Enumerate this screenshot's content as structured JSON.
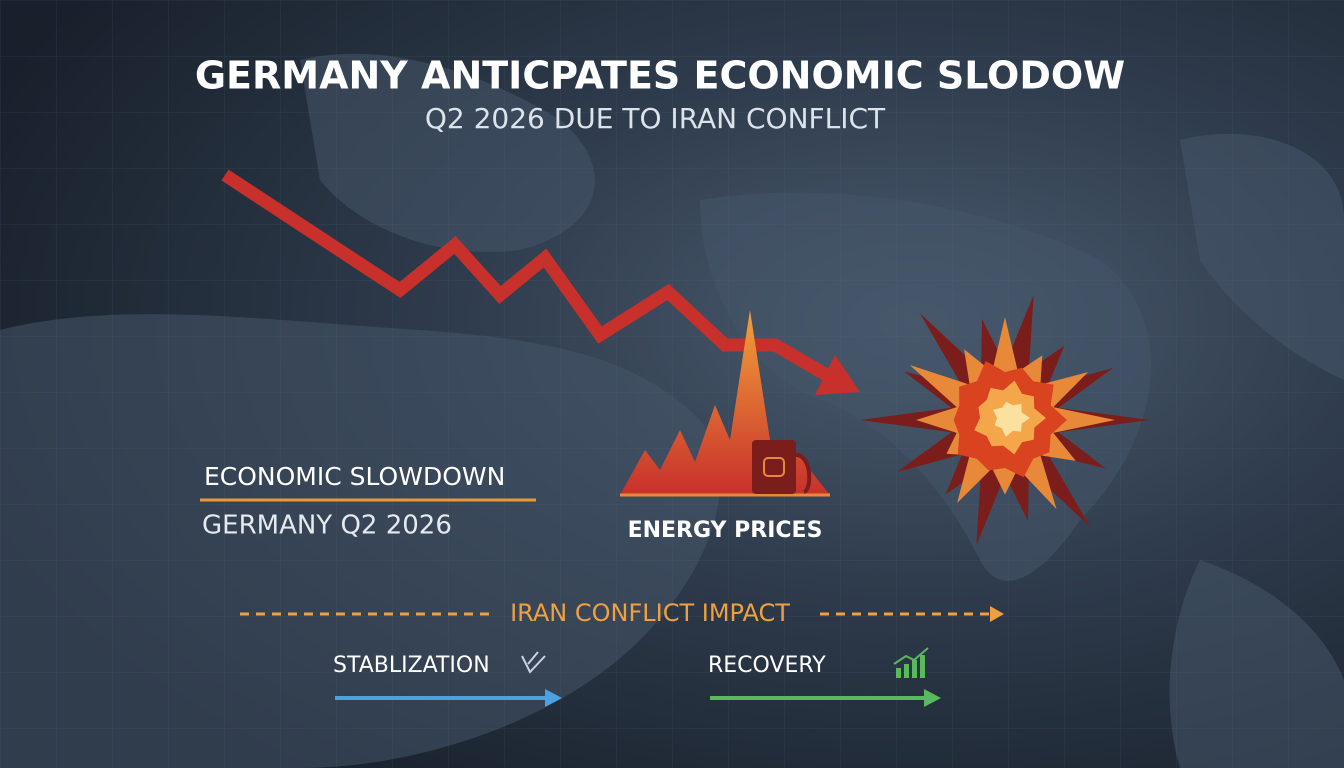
{
  "header": {
    "title": "GERMANY ANTICPATES ECONOMIC SLODOW",
    "subtitle": "Q2 2026 DUE TO IRAN CONFLICT"
  },
  "labels": {
    "slowdown": {
      "title": "ECONOMIC SLOWDOWN",
      "subtitle": "GERMANY Q2 2026"
    },
    "energy": "ENERGY PRICES",
    "impact": "IRAN CONFLICT IMPACT",
    "stabilization": "STABLIZATION",
    "recovery": "RECOVERY"
  }
}
